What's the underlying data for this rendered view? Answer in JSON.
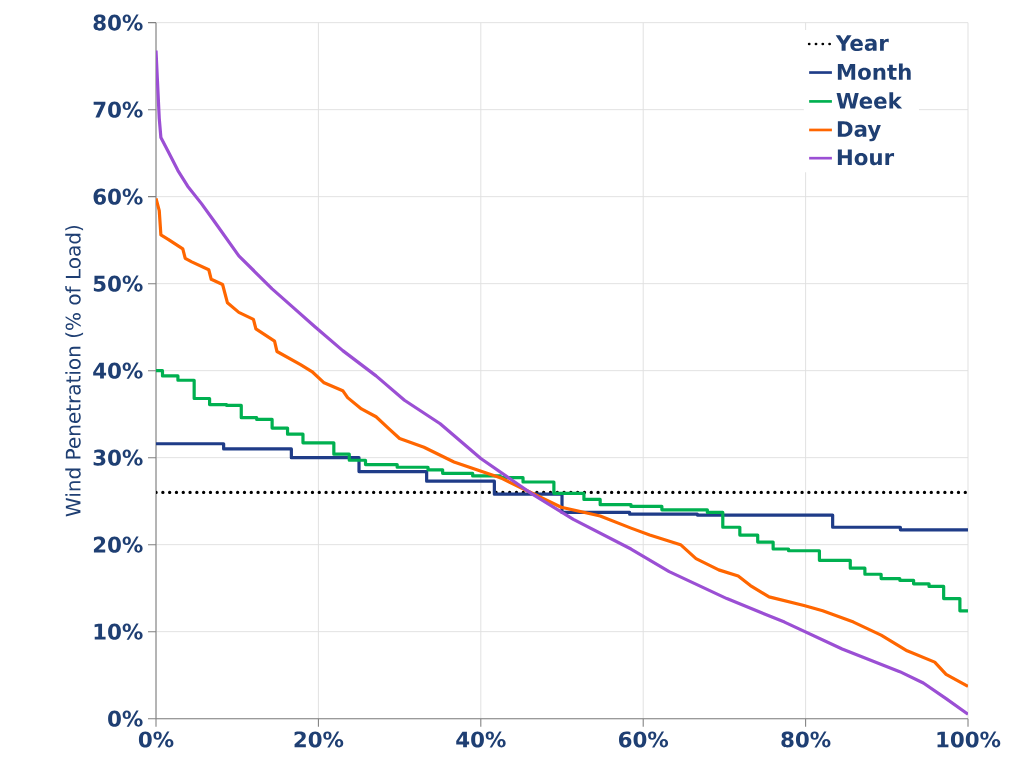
{
  "chart_data": {
    "type": "line",
    "ylabel": "Wind Penetration (% of Load)",
    "xlim": [
      0,
      100
    ],
    "ylim": [
      0,
      80
    ],
    "xticks": [
      {
        "value": 0,
        "label": "0%"
      },
      {
        "value": 20,
        "label": "20%"
      },
      {
        "value": 40,
        "label": "40%"
      },
      {
        "value": 60,
        "label": "60%"
      },
      {
        "value": 80,
        "label": "80%"
      },
      {
        "value": 100,
        "label": "100%"
      }
    ],
    "yticks": [
      {
        "value": 0,
        "label": "0%"
      },
      {
        "value": 10,
        "label": "10%"
      },
      {
        "value": 20,
        "label": "20%"
      },
      {
        "value": 30,
        "label": "30%"
      },
      {
        "value": 40,
        "label": "40%"
      },
      {
        "value": 50,
        "label": "50%"
      },
      {
        "value": 60,
        "label": "60%"
      },
      {
        "value": 70,
        "label": "70%"
      },
      {
        "value": 80,
        "label": "80%"
      }
    ],
    "grid": true,
    "legend": "top right",
    "series": [
      {
        "name": "Year",
        "color": "#000000",
        "line_style": "dotted",
        "x": [
          0,
          100
        ],
        "values": [
          26,
          26
        ]
      },
      {
        "name": "Month",
        "color": "#1f3c88",
        "type": "step",
        "x": [
          0,
          8.33,
          16.67,
          25,
          33.33,
          41.67,
          50,
          58.33,
          66.67,
          75,
          83.33,
          91.67,
          100
        ],
        "values": [
          31.6,
          31.0,
          30.0,
          28.4,
          27.3,
          25.8,
          23.7,
          23.5,
          23.4,
          23.4,
          22.0,
          21.7,
          21.7
        ]
      },
      {
        "name": "Week",
        "color": "#00b050",
        "type": "step",
        "x": [
          0,
          0.8,
          2.7,
          4.7,
          6.6,
          8.7,
          10.5,
          12.4,
          14.3,
          16.2,
          18.1,
          21.9,
          23.8,
          25.8,
          29.7,
          33.5,
          35.3,
          39,
          42.4,
          45.2,
          49,
          52.7,
          54.7,
          58.5,
          62.3,
          67.9,
          69.8,
          71.9,
          74.1,
          76,
          77.9,
          81.7,
          85.5,
          87.3,
          89.3,
          91.6,
          93.3,
          95.2,
          97,
          99,
          100
        ],
        "values": [
          40.0,
          39.4,
          38.9,
          36.8,
          36.1,
          36.0,
          34.6,
          34.4,
          33.4,
          32.7,
          31.7,
          30.4,
          29.7,
          29.2,
          28.9,
          28.6,
          28.2,
          27.9,
          27.7,
          27.2,
          25.9,
          25.2,
          24.6,
          24.4,
          24.0,
          23.7,
          22.0,
          21.1,
          20.3,
          19.5,
          19.3,
          18.2,
          17.3,
          16.6,
          16.1,
          15.9,
          15.5,
          15.2,
          13.8,
          12.4,
          12.4
        ]
      },
      {
        "name": "Day",
        "color": "#ff6600",
        "x": [
          0,
          0.4,
          0.6,
          1.5,
          3.3,
          3.6,
          4.4,
          6.5,
          6.8,
          8.2,
          8.8,
          10.2,
          12,
          12.3,
          14.6,
          14.9,
          17.8,
          19.2,
          20.7,
          23,
          23.6,
          25.3,
          27.1,
          28.6,
          30,
          33,
          36.7,
          39.5,
          42.4,
          45.7,
          49.9,
          54.7,
          58.5,
          60.8,
          64.6,
          66.5,
          69.3,
          71.7,
          73.2,
          75.5,
          79.8,
          82.1,
          85.9,
          89.3,
          92.5,
          95.9,
          97.3,
          100
        ],
        "values": [
          59.8,
          58.4,
          55.6,
          55.1,
          54.0,
          52.9,
          52.5,
          51.6,
          50.5,
          49.9,
          47.8,
          46.7,
          45.9,
          44.8,
          43.4,
          42.2,
          40.7,
          39.9,
          38.6,
          37.7,
          36.9,
          35.6,
          34.7,
          33.4,
          32.2,
          31.2,
          29.5,
          28.6,
          27.7,
          26.2,
          24.3,
          23.3,
          21.9,
          21.1,
          20.0,
          18.4,
          17.1,
          16.4,
          15.3,
          14.0,
          13.0,
          12.4,
          11.1,
          9.6,
          7.8,
          6.5,
          5.1,
          3.7
        ]
      },
      {
        "name": "Hour",
        "color": "#9b4fd4",
        "x": [
          0,
          0.4,
          0.6,
          1.5,
          2.7,
          3.9,
          5.6,
          7.3,
          10.2,
          14.3,
          16.6,
          19.5,
          23,
          27.1,
          30.6,
          35,
          40,
          46.2,
          51.4,
          58.5,
          63.2,
          70.3,
          77.4,
          84.5,
          91.6,
          94.5,
          97.3,
          100
        ],
        "values": [
          76.8,
          69.0,
          66.8,
          65.2,
          63.0,
          61.2,
          59.2,
          57.0,
          53.2,
          49.4,
          47.5,
          45.1,
          42.3,
          39.4,
          36.6,
          33.9,
          29.9,
          25.9,
          22.9,
          19.5,
          16.9,
          13.8,
          11.1,
          8.0,
          5.4,
          4.1,
          2.3,
          0.5
        ]
      }
    ]
  }
}
